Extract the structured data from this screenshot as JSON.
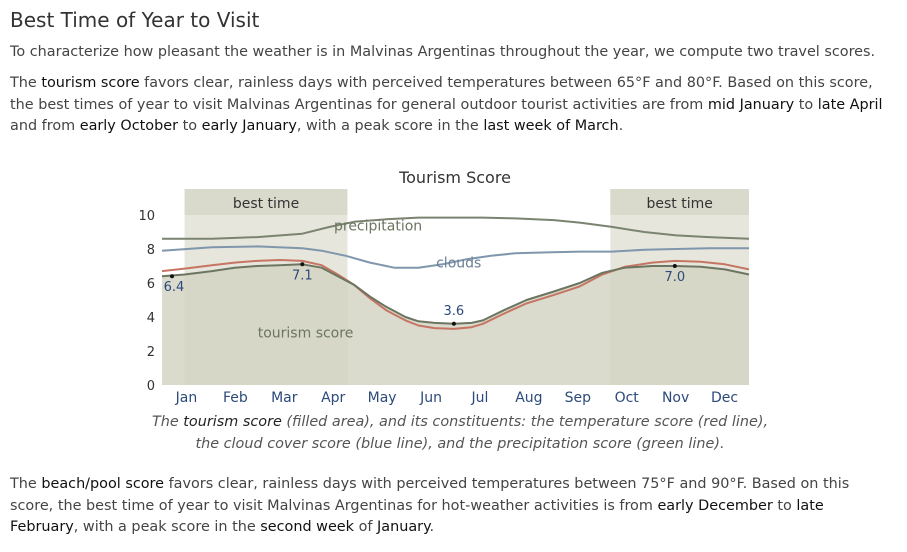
{
  "heading": "Best Time of Year to Visit",
  "intro": "To characterize how pleasant the weather is in Malvinas Argentinas throughout the year, we compute two travel scores.",
  "tourism_paragraph": {
    "t1": "The ",
    "k1": "tourism score",
    "t2": " favors clear, rainless days with perceived temperatures between 65°F and 80°F. Based on this score, the best times of year to visit Malvinas Argentinas for general outdoor tourist activities are from ",
    "k2": "mid January",
    "t3": " to ",
    "k3": "late April",
    "t4": " and from ",
    "k4": "early October",
    "t5": " to ",
    "k5": "early January",
    "t6": ", with a peak score in the ",
    "k6": "last week of March",
    "t7": "."
  },
  "caption": {
    "t1": "The ",
    "k1": "tourism score",
    "t2": " (filled area), and its constituents: the temperature score (red line), the cloud cover score (blue line), and the precipitation score (green line)."
  },
  "beach_paragraph": {
    "t1": "The ",
    "k1": "beach/pool score",
    "t2": " favors clear, rainless days with perceived temperatures between 75°F and 90°F. Based on this score, the best time of year to visit Malvinas Argentinas for hot-weather activities is from ",
    "k2": "early December",
    "t3": " to ",
    "k3": "late February",
    "t4": ", with a peak score in the ",
    "k4": "second week",
    "t5": " of ",
    "k5": "January",
    "t6": "."
  },
  "chart_data": {
    "type": "area",
    "title": "Tourism Score",
    "categories": [
      "Jan",
      "Feb",
      "Mar",
      "Apr",
      "May",
      "Jun",
      "Jul",
      "Aug",
      "Sep",
      "Oct",
      "Nov",
      "Dec"
    ],
    "ylim": [
      0,
      10
    ],
    "yticks": [
      0,
      2,
      4,
      6,
      8,
      10
    ],
    "x_unit": "day of year",
    "xlim": [
      1,
      365
    ],
    "best_time_label": "best time",
    "best_time_ranges": [
      [
        15,
        116
      ],
      [
        279,
        365
      ]
    ],
    "series": [
      {
        "name": "tourism score",
        "x": [
          1,
          15,
          32,
          46,
          60,
          74,
          88,
          100,
          110,
          120,
          130,
          140,
          152,
          160,
          170,
          182,
          193,
          200,
          213,
          227,
          244,
          260,
          274,
          288,
          305,
          319,
          335,
          350,
          365
        ],
        "values": [
          6.4,
          6.5,
          6.7,
          6.9,
          7.0,
          7.05,
          7.1,
          6.9,
          6.4,
          5.9,
          5.2,
          4.6,
          4.0,
          3.75,
          3.65,
          3.6,
          3.65,
          3.8,
          4.4,
          5.0,
          5.5,
          6.0,
          6.6,
          6.9,
          7.0,
          7.0,
          6.95,
          6.8,
          6.5
        ]
      },
      {
        "name": "temperature score",
        "x": [
          1,
          15,
          32,
          46,
          60,
          74,
          88,
          100,
          110,
          120,
          130,
          140,
          152,
          160,
          170,
          182,
          193,
          200,
          213,
          227,
          244,
          260,
          274,
          288,
          305,
          319,
          335,
          350,
          365
        ],
        "values": [
          6.7,
          6.85,
          7.05,
          7.2,
          7.3,
          7.35,
          7.3,
          7.05,
          6.5,
          5.9,
          5.1,
          4.4,
          3.8,
          3.5,
          3.35,
          3.3,
          3.4,
          3.6,
          4.2,
          4.8,
          5.3,
          5.8,
          6.5,
          6.95,
          7.2,
          7.3,
          7.25,
          7.1,
          6.8
        ]
      },
      {
        "name": "cloud cover score",
        "x": [
          1,
          32,
          60,
          88,
          100,
          115,
          130,
          145,
          160,
          175,
          190,
          205,
          220,
          240,
          260,
          280,
          300,
          320,
          340,
          365
        ],
        "values": [
          7.9,
          8.1,
          8.15,
          8.05,
          7.9,
          7.6,
          7.2,
          6.9,
          6.9,
          7.1,
          7.4,
          7.6,
          7.75,
          7.8,
          7.85,
          7.85,
          7.95,
          8.0,
          8.05,
          8.05
        ]
      },
      {
        "name": "precipitation score",
        "x": [
          1,
          32,
          60,
          88,
          105,
          120,
          140,
          160,
          182,
          200,
          220,
          244,
          260,
          280,
          300,
          320,
          340,
          365
        ],
        "values": [
          8.6,
          8.6,
          8.7,
          8.9,
          9.3,
          9.6,
          9.75,
          9.85,
          9.85,
          9.85,
          9.8,
          9.7,
          9.55,
          9.3,
          9.0,
          8.8,
          8.7,
          8.6
        ]
      }
    ],
    "data_labels": [
      {
        "text": "6.4",
        "x": 1,
        "y": 6.4
      },
      {
        "text": "7.1",
        "x": 88,
        "y": 7.1
      },
      {
        "text": "3.6",
        "x": 182,
        "y": 3.6
      },
      {
        "text": "7.0",
        "x": 319,
        "y": 7.0
      }
    ],
    "series_labels": [
      {
        "text": "precipitation",
        "x": 135,
        "y": 9.1
      },
      {
        "text": "clouds",
        "x": 185,
        "y": 6.9
      },
      {
        "text": "tourism score",
        "x": 90,
        "y": 2.8
      }
    ],
    "colors": {
      "area_fill": "#d4d4c4",
      "area_stroke": "#6b7560",
      "temperature": "#c67563",
      "clouds": "#7f96ad",
      "precipitation": "#7a8470",
      "best_band": "#e6e6dc",
      "best_header": "#d9d9cc",
      "label_blue": "#2c4a7a"
    }
  }
}
